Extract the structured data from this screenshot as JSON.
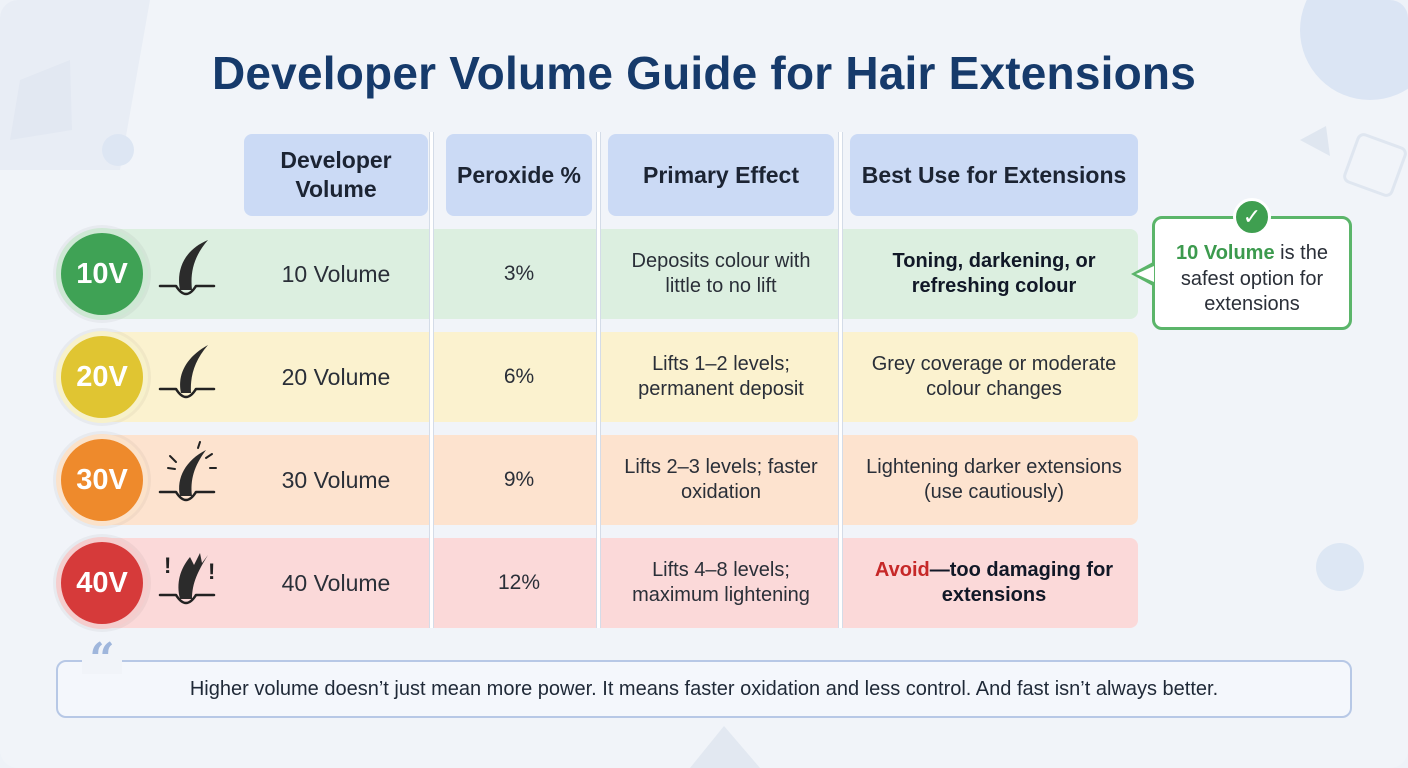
{
  "title": "Developer Volume Guide for Hair Extensions",
  "headers": {
    "developer_volume": "Developer Volume",
    "peroxide": "Peroxide %",
    "primary_effect": "Primary Effect",
    "best_use": "Best Use for Extensions"
  },
  "rows": [
    {
      "badge": "10V",
      "badge_color": "#3fa255",
      "row_color": "#dcefe0",
      "hair_icon": "hair-strand-icon",
      "volume": "10 Volume",
      "peroxide": "3%",
      "effect": "Deposits colour with little to no lift",
      "best_use": "Toning, darkening, or refreshing colour"
    },
    {
      "badge": "20V",
      "badge_color": "#e0c532",
      "row_color": "#fbf2cf",
      "hair_icon": "hair-strand-icon",
      "volume": "20 Volume",
      "peroxide": "6%",
      "effect": "Lifts 1–2 levels; permanent deposit",
      "best_use": "Grey coverage or moderate colour changes"
    },
    {
      "badge": "30V",
      "badge_color": "#ee8a2c",
      "row_color": "#fde3cf",
      "hair_icon": "hair-strand-stressed-icon",
      "volume": "30 Volume",
      "peroxide": "9%",
      "effect": "Lifts 2–3 levels; faster oxidation",
      "best_use": "Lightening darker extensions (use cautiously)"
    },
    {
      "badge": "40V",
      "badge_color": "#d63a3a",
      "row_color": "#fbd9d9",
      "hair_icon": "hair-strand-damaged-icon",
      "volume": "40 Volume",
      "peroxide": "12%",
      "effect": "Lifts 4–8 levels; maximum lightening",
      "best_use_highlight": "Avoid",
      "best_use": "—too damaging for extensions"
    }
  ],
  "callout": {
    "highlight": "10 Volume",
    "text": " is the safest option for extensions"
  },
  "quote": "Higher volume doesn’t just mean more power. It means faster oxidation and less control. And fast isn’t always better."
}
